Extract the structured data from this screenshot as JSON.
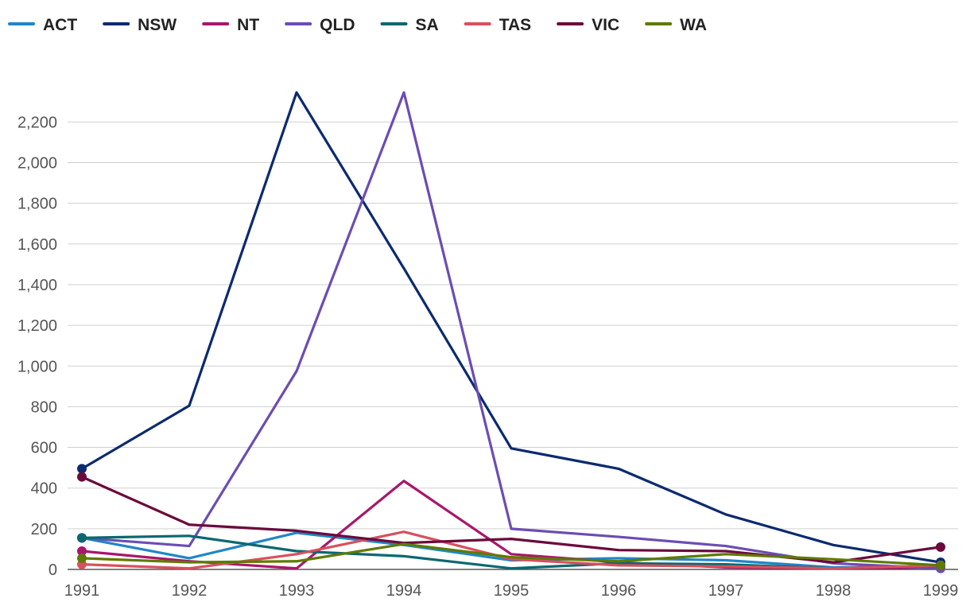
{
  "chart_data": {
    "type": "line",
    "title": "",
    "xlabel": "",
    "ylabel": "",
    "x": [
      "1991",
      "1992",
      "1993",
      "1994",
      "1995",
      "1996",
      "1997",
      "1998",
      "1999"
    ],
    "ylim": [
      0,
      2350
    ],
    "yticks": [
      0,
      200,
      400,
      600,
      800,
      1000,
      1200,
      1400,
      1600,
      1800,
      2000,
      2200
    ],
    "ytick_labels": [
      "0",
      "200",
      "400",
      "600",
      "800",
      "1,000",
      "1,200",
      "1,400",
      "1,600",
      "1,800",
      "2,000",
      "2,200"
    ],
    "grid": true,
    "legend_position": "top-left",
    "series": [
      {
        "name": "ACT",
        "color": "#1f86c8",
        "values": [
          155,
          55,
          180,
          120,
          45,
          55,
          45,
          10,
          15
        ]
      },
      {
        "name": "NSW",
        "color": "#0b2a6f",
        "values": [
          495,
          805,
          2345,
          1480,
          595,
          495,
          270,
          120,
          35
        ]
      },
      {
        "name": "NT",
        "color": "#a8176b",
        "values": [
          90,
          40,
          5,
          435,
          75,
          35,
          10,
          5,
          10
        ]
      },
      {
        "name": "QLD",
        "color": "#6b4db3",
        "values": [
          155,
          115,
          975,
          2345,
          200,
          160,
          115,
          30,
          5
        ]
      },
      {
        "name": "SA",
        "color": "#0b6870",
        "values": [
          155,
          165,
          90,
          65,
          5,
          30,
          25,
          5,
          20
        ]
      },
      {
        "name": "TAS",
        "color": "#d8505e",
        "values": [
          25,
          5,
          75,
          185,
          50,
          20,
          15,
          5,
          20
        ]
      },
      {
        "name": "VIC",
        "color": "#6b0a3c",
        "values": [
          455,
          220,
          190,
          130,
          150,
          95,
          90,
          35,
          110
        ]
      },
      {
        "name": "WA",
        "color": "#5e7a00",
        "values": [
          55,
          35,
          40,
          125,
          60,
          40,
          75,
          50,
          20
        ]
      }
    ]
  }
}
